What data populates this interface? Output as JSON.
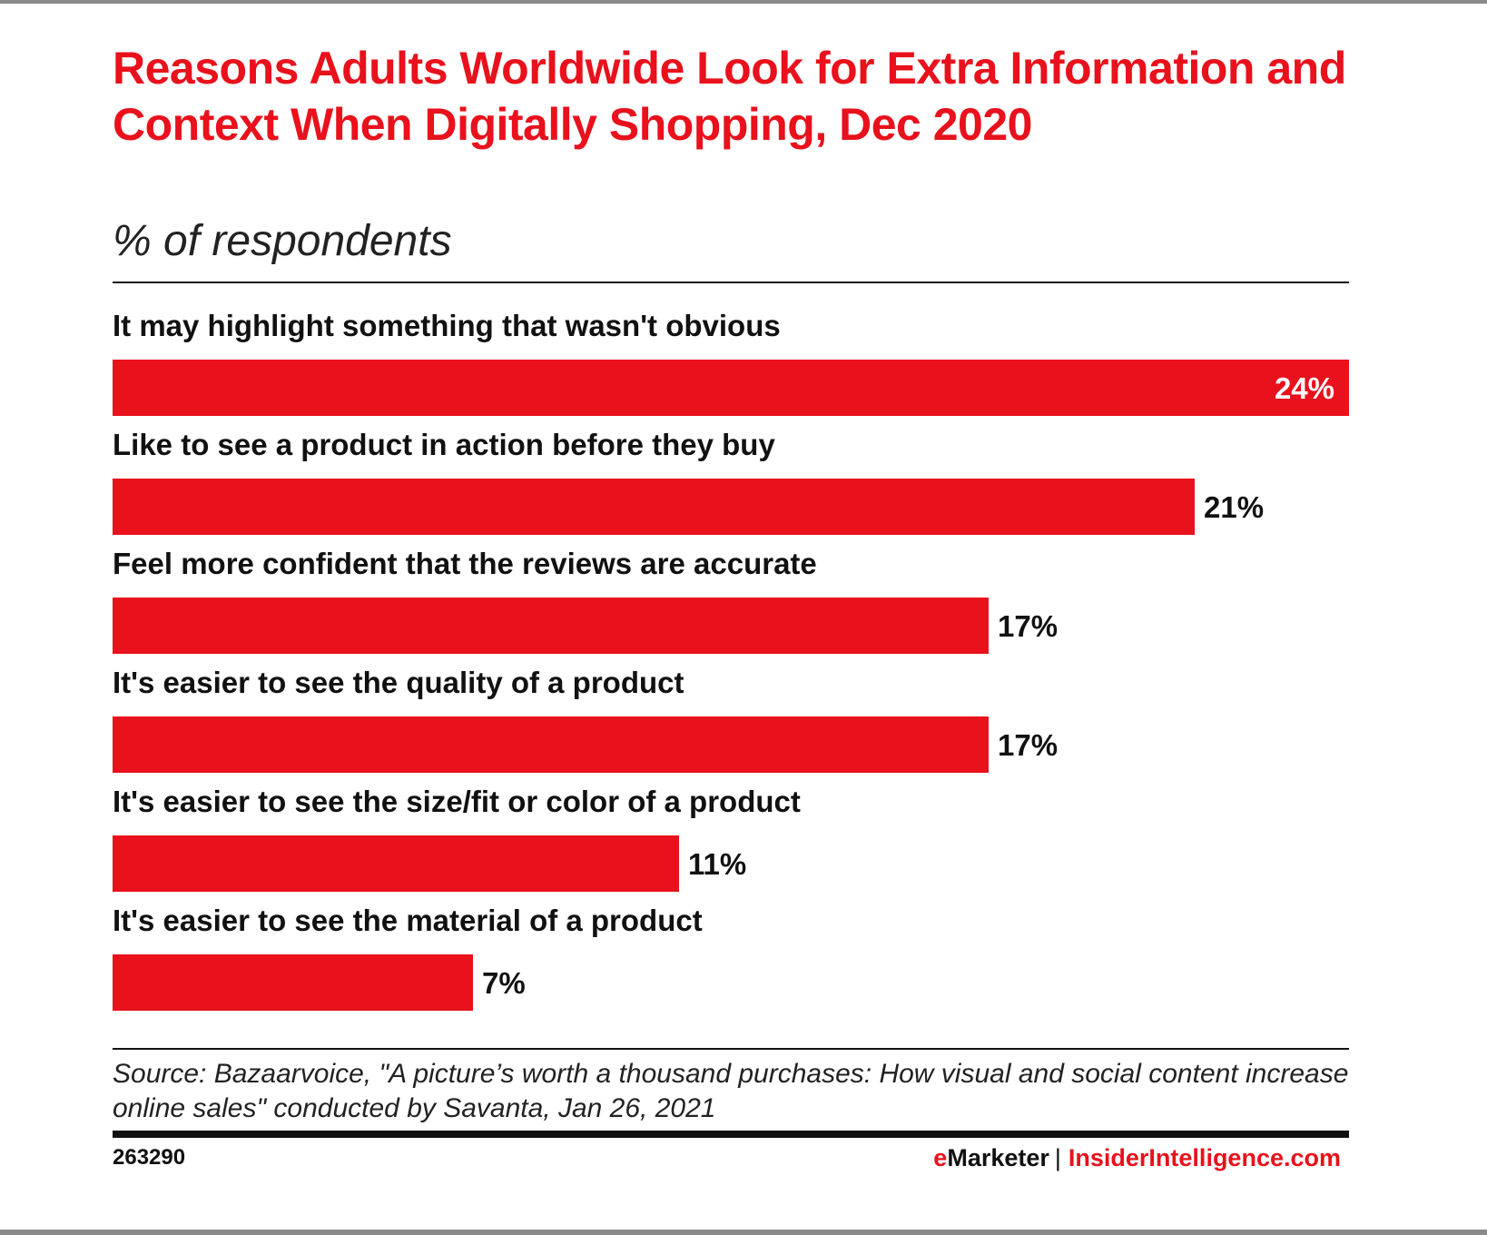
{
  "title": "Reasons Adults Worldwide Look for Extra Information and Context When Digitally Shopping, Dec 2020",
  "subtitle": "% of respondents",
  "source": "Source: Bazaarvoice, \"A picture’s worth a thousand purchases: How visual and social content increase online sales\" conducted by Savanta, Jan 26, 2021",
  "chart_id": "263290",
  "brand": {
    "emarketer_e": "e",
    "emarketer_rest": "Marketer",
    "separator": "|",
    "site": "InsiderIntelligence.com"
  },
  "colors": {
    "accent": "#e8111c",
    "text": "#111111",
    "bar_label_inside": "#ffffff"
  },
  "chart_data": {
    "type": "bar",
    "orientation": "horizontal",
    "title": "Reasons Adults Worldwide Look for Extra Information and Context When Digitally Shopping, Dec 2020",
    "subtitle": "% of respondents",
    "categories": [
      "It may highlight something that wasn't obvious",
      "Like to see a product in action before they buy",
      "Feel more confident that the reviews are accurate",
      "It's easier to see the quality of a product",
      "It's easier to see the size/fit or color of a product",
      "It's easier to see the material of a product"
    ],
    "values": [
      24,
      21,
      17,
      17,
      11,
      7
    ],
    "value_labels": [
      "24%",
      "21%",
      "17%",
      "17%",
      "11%",
      "7%"
    ],
    "unit": "%",
    "xlim": [
      0,
      24
    ],
    "grid": false,
    "legend": "none"
  }
}
